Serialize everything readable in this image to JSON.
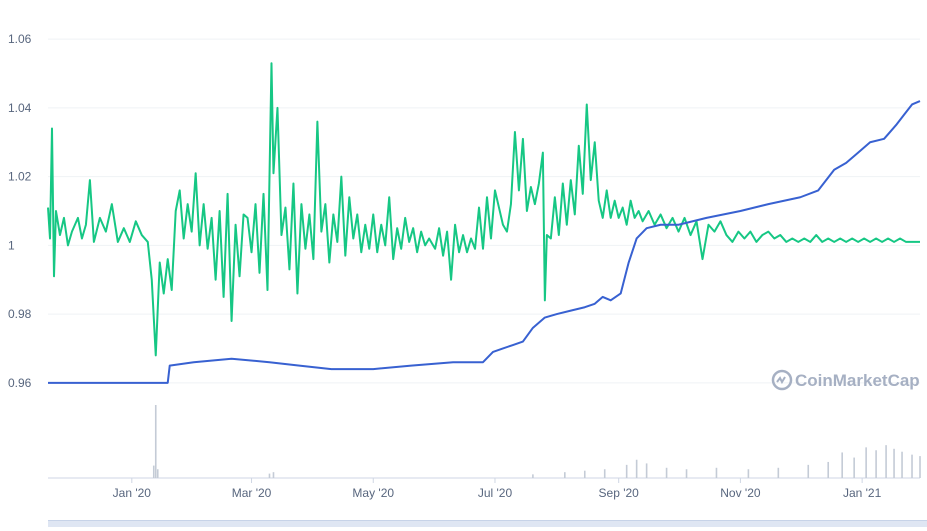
{
  "chart_data": {
    "type": "line",
    "title": "",
    "xlabel": "",
    "ylabel": "",
    "ylim": [
      0.955,
      1.065
    ],
    "y_ticks": [
      "0.96",
      "0.98",
      "1",
      "1.02",
      "1.04",
      "1.06"
    ],
    "y_tick_values": [
      0.96,
      0.98,
      1.0,
      1.02,
      1.04,
      1.06
    ],
    "x_ticks": [
      "Jan '20",
      "Mar '20",
      "May '20",
      "Jul '20",
      "Sep '20",
      "Nov '20",
      "Jan '21"
    ],
    "x_tick_dates": [
      "2020-01-01",
      "2020-03-01",
      "2020-05-01",
      "2020-07-01",
      "2020-09-01",
      "2020-11-01",
      "2021-01-01"
    ],
    "x_range": [
      "2019-11-20",
      "2021-01-30"
    ],
    "grid": true,
    "legend": "none",
    "series": [
      {
        "color": "#16c784",
        "kind": "price",
        "points": [
          [
            "2019-11-20",
            1.011
          ],
          [
            "2019-11-21",
            1.002
          ],
          [
            "2019-11-22",
            1.034
          ],
          [
            "2019-11-23",
            0.991
          ],
          [
            "2019-11-24",
            1.01
          ],
          [
            "2019-11-26",
            1.003
          ],
          [
            "2019-11-28",
            1.008
          ],
          [
            "2019-11-30",
            1.0
          ],
          [
            "2019-12-02",
            1.004
          ],
          [
            "2019-12-05",
            1.008
          ],
          [
            "2019-12-07",
            1.002
          ],
          [
            "2019-12-09",
            1.006
          ],
          [
            "2019-12-11",
            1.019
          ],
          [
            "2019-12-13",
            1.001
          ],
          [
            "2019-12-16",
            1.008
          ],
          [
            "2019-12-19",
            1.004
          ],
          [
            "2019-12-22",
            1.012
          ],
          [
            "2019-12-25",
            1.001
          ],
          [
            "2019-12-28",
            1.005
          ],
          [
            "2019-12-31",
            1.001
          ],
          [
            "2020-01-03",
            1.007
          ],
          [
            "2020-01-06",
            1.003
          ],
          [
            "2020-01-09",
            1.001
          ],
          [
            "2020-01-11",
            0.99
          ],
          [
            "2020-01-13",
            0.968
          ],
          [
            "2020-01-15",
            0.995
          ],
          [
            "2020-01-17",
            0.986
          ],
          [
            "2020-01-19",
            0.996
          ],
          [
            "2020-01-21",
            0.987
          ],
          [
            "2020-01-23",
            1.01
          ],
          [
            "2020-01-25",
            1.016
          ],
          [
            "2020-01-27",
            1.002
          ],
          [
            "2020-01-29",
            1.012
          ],
          [
            "2020-01-31",
            1.004
          ],
          [
            "2020-02-02",
            1.021
          ],
          [
            "2020-02-04",
            1.0
          ],
          [
            "2020-02-06",
            1.012
          ],
          [
            "2020-02-08",
            0.999
          ],
          [
            "2020-02-10",
            1.008
          ],
          [
            "2020-02-12",
            0.99
          ],
          [
            "2020-02-14",
            1.01
          ],
          [
            "2020-02-16",
            0.985
          ],
          [
            "2020-02-18",
            1.015
          ],
          [
            "2020-02-20",
            0.978
          ],
          [
            "2020-02-22",
            1.006
          ],
          [
            "2020-02-24",
            0.991
          ],
          [
            "2020-02-26",
            1.009
          ],
          [
            "2020-02-28",
            1.008
          ],
          [
            "2020-03-01",
            0.998
          ],
          [
            "2020-03-03",
            1.012
          ],
          [
            "2020-03-05",
            0.992
          ],
          [
            "2020-03-07",
            1.015
          ],
          [
            "2020-03-09",
            0.987
          ],
          [
            "2020-03-11",
            1.053
          ],
          [
            "2020-03-12",
            1.021
          ],
          [
            "2020-03-14",
            1.04
          ],
          [
            "2020-03-16",
            1.003
          ],
          [
            "2020-03-18",
            1.011
          ],
          [
            "2020-03-20",
            0.993
          ],
          [
            "2020-03-22",
            1.018
          ],
          [
            "2020-03-24",
            0.986
          ],
          [
            "2020-03-26",
            1.012
          ],
          [
            "2020-03-28",
            0.999
          ],
          [
            "2020-03-30",
            1.009
          ],
          [
            "2020-04-01",
            0.996
          ],
          [
            "2020-04-03",
            1.036
          ],
          [
            "2020-04-05",
            1.004
          ],
          [
            "2020-04-07",
            1.012
          ],
          [
            "2020-04-09",
            0.995
          ],
          [
            "2020-04-11",
            1.009
          ],
          [
            "2020-04-13",
            1.001
          ],
          [
            "2020-04-15",
            1.02
          ],
          [
            "2020-04-17",
            0.997
          ],
          [
            "2020-04-19",
            1.014
          ],
          [
            "2020-04-21",
            1.002
          ],
          [
            "2020-04-23",
            1.009
          ],
          [
            "2020-04-25",
            0.998
          ],
          [
            "2020-04-27",
            1.006
          ],
          [
            "2020-04-29",
            0.999
          ],
          [
            "2020-05-01",
            1.009
          ],
          [
            "2020-05-03",
            0.998
          ],
          [
            "2020-05-05",
            1.006
          ],
          [
            "2020-05-07",
            1.0
          ],
          [
            "2020-05-09",
            1.014
          ],
          [
            "2020-05-11",
            0.996
          ],
          [
            "2020-05-13",
            1.005
          ],
          [
            "2020-05-15",
            0.999
          ],
          [
            "2020-05-17",
            1.008
          ],
          [
            "2020-05-19",
            1.001
          ],
          [
            "2020-05-21",
            1.005
          ],
          [
            "2020-05-23",
            0.998
          ],
          [
            "2020-05-25",
            1.004
          ],
          [
            "2020-05-27",
            1.0
          ],
          [
            "2020-05-29",
            1.002
          ],
          [
            "2020-06-01",
            0.999
          ],
          [
            "2020-06-03",
            1.005
          ],
          [
            "2020-06-05",
            0.997
          ],
          [
            "2020-06-07",
            1.004
          ],
          [
            "2020-06-09",
            0.99
          ],
          [
            "2020-06-11",
            1.006
          ],
          [
            "2020-06-13",
            0.998
          ],
          [
            "2020-06-15",
            1.003
          ],
          [
            "2020-06-17",
            0.998
          ],
          [
            "2020-06-19",
            1.002
          ],
          [
            "2020-06-21",
            0.999
          ],
          [
            "2020-06-23",
            1.011
          ],
          [
            "2020-06-25",
            0.999
          ],
          [
            "2020-06-27",
            1.014
          ],
          [
            "2020-06-29",
            1.002
          ],
          [
            "2020-07-01",
            1.016
          ],
          [
            "2020-07-03",
            1.011
          ],
          [
            "2020-07-05",
            1.006
          ],
          [
            "2020-07-07",
            1.004
          ],
          [
            "2020-07-09",
            1.012
          ],
          [
            "2020-07-11",
            1.033
          ],
          [
            "2020-07-13",
            1.016
          ],
          [
            "2020-07-15",
            1.031
          ],
          [
            "2020-07-17",
            1.01
          ],
          [
            "2020-07-19",
            1.017
          ],
          [
            "2020-07-21",
            1.012
          ],
          [
            "2020-07-23",
            1.018
          ],
          [
            "2020-07-25",
            1.027
          ],
          [
            "2020-07-26",
            0.984
          ],
          [
            "2020-07-27",
            1.003
          ],
          [
            "2020-07-29",
            1.002
          ],
          [
            "2020-07-31",
            1.014
          ],
          [
            "2020-08-02",
            1.003
          ],
          [
            "2020-08-04",
            1.018
          ],
          [
            "2020-08-06",
            1.006
          ],
          [
            "2020-08-08",
            1.019
          ],
          [
            "2020-08-10",
            1.009
          ],
          [
            "2020-08-12",
            1.029
          ],
          [
            "2020-08-14",
            1.015
          ],
          [
            "2020-08-16",
            1.041
          ],
          [
            "2020-08-18",
            1.019
          ],
          [
            "2020-08-20",
            1.03
          ],
          [
            "2020-08-22",
            1.013
          ],
          [
            "2020-08-24",
            1.008
          ],
          [
            "2020-08-26",
            1.016
          ],
          [
            "2020-08-28",
            1.008
          ],
          [
            "2020-08-30",
            1.013
          ],
          [
            "2020-09-01",
            1.008
          ],
          [
            "2020-09-03",
            1.011
          ],
          [
            "2020-09-05",
            1.006
          ],
          [
            "2020-09-07",
            1.013
          ],
          [
            "2020-09-09",
            1.008
          ],
          [
            "2020-09-11",
            1.01
          ],
          [
            "2020-09-13",
            1.007
          ],
          [
            "2020-09-16",
            1.01
          ],
          [
            "2020-09-19",
            1.006
          ],
          [
            "2020-09-22",
            1.009
          ],
          [
            "2020-09-25",
            1.005
          ],
          [
            "2020-09-28",
            1.008
          ],
          [
            "2020-10-01",
            1.004
          ],
          [
            "2020-10-04",
            1.008
          ],
          [
            "2020-10-07",
            1.003
          ],
          [
            "2020-10-10",
            1.007
          ],
          [
            "2020-10-13",
            0.996
          ],
          [
            "2020-10-16",
            1.006
          ],
          [
            "2020-10-19",
            1.004
          ],
          [
            "2020-10-22",
            1.007
          ],
          [
            "2020-10-25",
            1.003
          ],
          [
            "2020-10-28",
            1.001
          ],
          [
            "2020-10-31",
            1.004
          ],
          [
            "2020-11-03",
            1.002
          ],
          [
            "2020-11-06",
            1.004
          ],
          [
            "2020-11-09",
            1.001
          ],
          [
            "2020-11-12",
            1.003
          ],
          [
            "2020-11-15",
            1.004
          ],
          [
            "2020-11-18",
            1.002
          ],
          [
            "2020-11-21",
            1.003
          ],
          [
            "2020-11-24",
            1.001
          ],
          [
            "2020-11-27",
            1.002
          ],
          [
            "2020-11-30",
            1.001
          ],
          [
            "2020-12-03",
            1.002
          ],
          [
            "2020-12-06",
            1.001
          ],
          [
            "2020-12-09",
            1.003
          ],
          [
            "2020-12-12",
            1.001
          ],
          [
            "2020-12-15",
            1.002
          ],
          [
            "2020-12-18",
            1.001
          ],
          [
            "2020-12-21",
            1.002
          ],
          [
            "2020-12-24",
            1.001
          ],
          [
            "2020-12-27",
            1.002
          ],
          [
            "2020-12-30",
            1.001
          ],
          [
            "2021-01-02",
            1.002
          ],
          [
            "2021-01-05",
            1.001
          ],
          [
            "2021-01-08",
            1.002
          ],
          [
            "2021-01-11",
            1.001
          ],
          [
            "2021-01-14",
            1.002
          ],
          [
            "2021-01-17",
            1.001
          ],
          [
            "2021-01-20",
            1.002
          ],
          [
            "2021-01-23",
            1.001
          ],
          [
            "2021-01-26",
            1.001
          ],
          [
            "2021-01-30",
            1.001
          ]
        ]
      },
      {
        "color": "#3861d1",
        "kind": "market cap",
        "points": [
          [
            "2019-11-20",
            0.96
          ],
          [
            "2020-01-19",
            0.96
          ],
          [
            "2020-01-20",
            0.965
          ],
          [
            "2020-02-01",
            0.966
          ],
          [
            "2020-02-20",
            0.967
          ],
          [
            "2020-03-10",
            0.966
          ],
          [
            "2020-03-25",
            0.965
          ],
          [
            "2020-04-10",
            0.964
          ],
          [
            "2020-05-01",
            0.964
          ],
          [
            "2020-05-20",
            0.965
          ],
          [
            "2020-06-10",
            0.966
          ],
          [
            "2020-06-25",
            0.966
          ],
          [
            "2020-06-30",
            0.969
          ],
          [
            "2020-07-05",
            0.97
          ],
          [
            "2020-07-10",
            0.971
          ],
          [
            "2020-07-15",
            0.972
          ],
          [
            "2020-07-20",
            0.976
          ],
          [
            "2020-07-26",
            0.979
          ],
          [
            "2020-08-01",
            0.98
          ],
          [
            "2020-08-08",
            0.981
          ],
          [
            "2020-08-15",
            0.982
          ],
          [
            "2020-08-20",
            0.983
          ],
          [
            "2020-08-24",
            0.985
          ],
          [
            "2020-08-28",
            0.984
          ],
          [
            "2020-09-02",
            0.986
          ],
          [
            "2020-09-06",
            0.995
          ],
          [
            "2020-09-10",
            1.002
          ],
          [
            "2020-09-15",
            1.005
          ],
          [
            "2020-09-22",
            1.006
          ],
          [
            "2020-10-01",
            1.006
          ],
          [
            "2020-10-15",
            1.008
          ],
          [
            "2020-11-01",
            1.01
          ],
          [
            "2020-11-15",
            1.012
          ],
          [
            "2020-12-01",
            1.014
          ],
          [
            "2020-12-10",
            1.016
          ],
          [
            "2020-12-18",
            1.022
          ],
          [
            "2020-12-24",
            1.024
          ],
          [
            "2020-12-30",
            1.027
          ],
          [
            "2021-01-05",
            1.03
          ],
          [
            "2021-01-12",
            1.031
          ],
          [
            "2021-01-18",
            1.035
          ],
          [
            "2021-01-22",
            1.038
          ],
          [
            "2021-01-26",
            1.041
          ],
          [
            "2021-01-30",
            1.042
          ]
        ]
      },
      {
        "color": "#c4cbd6",
        "kind": "volume",
        "points": [
          [
            "2020-01-12",
            0.17
          ],
          [
            "2020-01-13",
            1.0
          ],
          [
            "2020-01-14",
            0.12
          ],
          [
            "2020-03-10",
            0.06
          ],
          [
            "2020-03-12",
            0.08
          ],
          [
            "2020-07-20",
            0.05
          ],
          [
            "2020-08-05",
            0.08
          ],
          [
            "2020-08-15",
            0.1
          ],
          [
            "2020-08-25",
            0.12
          ],
          [
            "2020-09-05",
            0.18
          ],
          [
            "2020-09-10",
            0.25
          ],
          [
            "2020-09-15",
            0.2
          ],
          [
            "2020-09-25",
            0.14
          ],
          [
            "2020-10-05",
            0.12
          ],
          [
            "2020-10-20",
            0.14
          ],
          [
            "2020-11-05",
            0.12
          ],
          [
            "2020-11-20",
            0.14
          ],
          [
            "2020-12-05",
            0.18
          ],
          [
            "2020-12-15",
            0.22
          ],
          [
            "2020-12-22",
            0.35
          ],
          [
            "2020-12-28",
            0.28
          ],
          [
            "2021-01-03",
            0.42
          ],
          [
            "2021-01-08",
            0.38
          ],
          [
            "2021-01-13",
            0.45
          ],
          [
            "2021-01-17",
            0.4
          ],
          [
            "2021-01-21",
            0.36
          ],
          [
            "2021-01-26",
            0.32
          ],
          [
            "2021-01-30",
            0.3
          ]
        ]
      }
    ]
  },
  "watermark": {
    "text": "CoinMarketCap",
    "icon": "coinmarketcap-logo-icon"
  }
}
